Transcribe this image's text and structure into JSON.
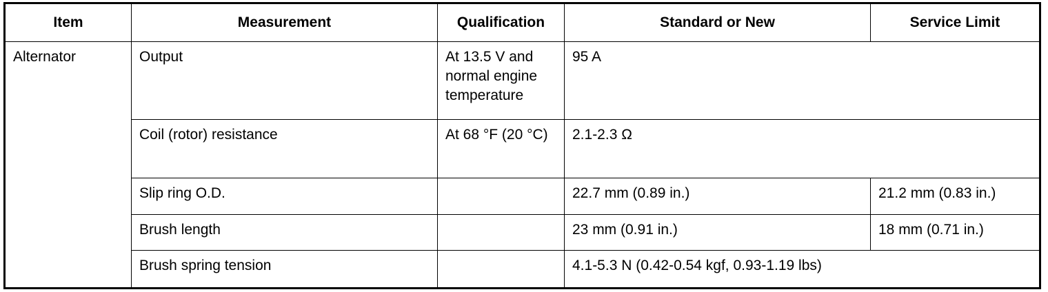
{
  "table": {
    "headers": [
      "Item",
      "Measurement",
      "Qualification",
      "Standard or New",
      "Service Limit"
    ],
    "item": "Alternator",
    "rows": [
      {
        "measurement": "Output",
        "qualification": "At 13.5 V and normal engine temperature",
        "standard": "95 A"
      },
      {
        "measurement": "Coil (rotor) resistance",
        "qualification": "At 68 °F (20 °C)",
        "standard": "2.1-2.3 Ω"
      },
      {
        "measurement": "Slip ring O.D.",
        "standard": "22.7 mm (0.89 in.)",
        "limit": "21.2 mm (0.83 in.)"
      },
      {
        "measurement": "Brush length",
        "standard": "23 mm (0.91 in.)",
        "limit": "18 mm (0.71 in.)"
      },
      {
        "measurement": "Brush spring tension",
        "standard": "4.1-5.3 N (0.42-0.54 kgf, 0.93-1.19 lbs)"
      }
    ]
  }
}
